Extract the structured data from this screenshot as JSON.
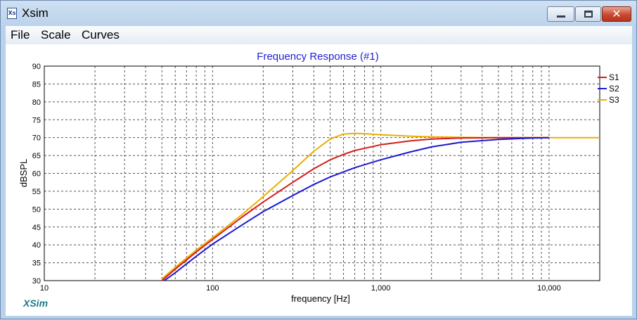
{
  "window": {
    "title": "Xsim",
    "icon": "xsim-app-icon",
    "controls": [
      "minimize-icon",
      "maximize-icon",
      "close-icon"
    ]
  },
  "menu": {
    "items": [
      "File",
      "Scale",
      "Curves"
    ]
  },
  "brand": "XSim",
  "chart_data": {
    "type": "line",
    "title": "Frequency Response (#1)",
    "xlabel": "frequency [Hz]",
    "ylabel": "dBSPL",
    "xscale": "log",
    "xlim": [
      10,
      20000
    ],
    "ylim": [
      30,
      90
    ],
    "xticks": [
      {
        "value": 10,
        "label": "10"
      },
      {
        "value": 100,
        "label": "100"
      },
      {
        "value": 1000,
        "label": "1,000"
      },
      {
        "value": 10000,
        "label": "10,000"
      }
    ],
    "yticks": [
      30,
      35,
      40,
      45,
      50,
      55,
      60,
      65,
      70,
      75,
      80,
      85,
      90
    ],
    "grid": true,
    "legend_position": "top-right",
    "colors": {
      "title": "#1f1fd0",
      "S1": "#d81b1b",
      "S2": "#1a1ad2",
      "S3": "#e8b000",
      "grid": "#555555"
    },
    "series": [
      {
        "name": "S1",
        "x": [
          50,
          60,
          80,
          100,
          150,
          200,
          300,
          400,
          500,
          600,
          700,
          1000,
          1500,
          2000,
          3000,
          5000,
          7000,
          10000
        ],
        "y": [
          30,
          33.2,
          38,
          41.5,
          47.8,
          52,
          57.5,
          61.3,
          63.8,
          65.3,
          66.4,
          68.0,
          69.1,
          69.6,
          69.9,
          70.0,
          70.0,
          70.0
        ]
      },
      {
        "name": "S2",
        "x": [
          50,
          60,
          80,
          100,
          150,
          200,
          300,
          400,
          500,
          700,
          1000,
          1500,
          2000,
          3000,
          5000,
          7000,
          10000
        ],
        "y": [
          29.5,
          32.2,
          36.8,
          40.2,
          45.6,
          49.3,
          53.8,
          56.9,
          59.0,
          61.6,
          63.8,
          66.0,
          67.4,
          68.7,
          69.5,
          69.8,
          70.0
        ]
      },
      {
        "name": "S3",
        "x": [
          50,
          60,
          80,
          100,
          150,
          200,
          300,
          400,
          500,
          600,
          700,
          800,
          1000,
          1500,
          2000,
          3000,
          5000,
          10000,
          20000
        ],
        "y": [
          30.5,
          33.7,
          38.5,
          42,
          48.5,
          53.5,
          60.8,
          66.2,
          69.6,
          71.0,
          71.2,
          71.1,
          70.8,
          70.4,
          70.2,
          70.1,
          70.0,
          70.0,
          70.0
        ]
      }
    ]
  }
}
